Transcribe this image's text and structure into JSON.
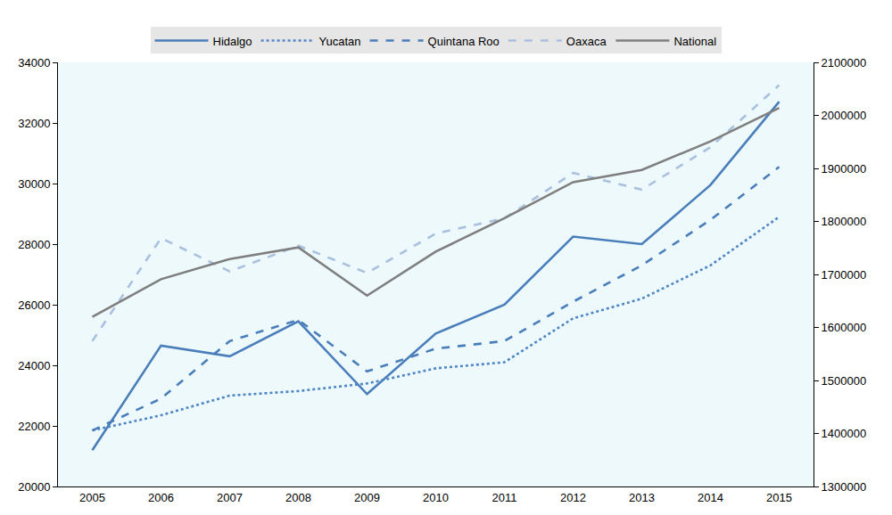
{
  "chart_data": {
    "type": "line",
    "x": [
      2005,
      2006,
      2007,
      2008,
      2009,
      2010,
      2011,
      2012,
      2013,
      2014,
      2015
    ],
    "xlim": [
      2004.5,
      2015.5
    ],
    "xticks": [
      2005,
      2006,
      2007,
      2008,
      2009,
      2010,
      2011,
      2012,
      2013,
      2014,
      2015
    ],
    "ylim": [
      20000,
      34000
    ],
    "yticks": [
      20000,
      22000,
      24000,
      26000,
      28000,
      30000,
      32000,
      34000
    ],
    "y2lim": [
      1300000,
      2100000
    ],
    "y2ticks": [
      1300000,
      1400000,
      1500000,
      1600000,
      1700000,
      1800000,
      1900000,
      2000000,
      2100000
    ],
    "grid": false,
    "legend": "top",
    "series": [
      {
        "name": "Hidalgo",
        "color": "#4a7ebb",
        "line_style": "solid",
        "values": [
          21200,
          24650,
          24300,
          25450,
          23050,
          25050,
          26000,
          28250,
          28000,
          29950,
          32700
        ]
      },
      {
        "name": "Yucatan",
        "color": "#4f86c6",
        "line_style": "dotted",
        "values": [
          21850,
          22350,
          23000,
          23150,
          23400,
          23900,
          24100,
          25550,
          26200,
          27300,
          28900
        ]
      },
      {
        "name": "Quintana Roo",
        "color": "#4a7ebb",
        "line_style": "dashed",
        "values": [
          21850,
          22900,
          24800,
          25500,
          23800,
          24550,
          24800,
          26100,
          27300,
          28800,
          30550
        ]
      },
      {
        "name": "Oaxaca",
        "color": "#a9c0de",
        "line_style": "dashed",
        "values": [
          24800,
          28200,
          27100,
          27950,
          27050,
          28350,
          28850,
          30350,
          29800,
          31200,
          33250
        ]
      },
      {
        "name": "National",
        "color": "#7f7f7f",
        "line_style": "solid",
        "axis": "y2",
        "values": [
          1620000,
          1691000,
          1729000,
          1751000,
          1660000,
          1743000,
          1806000,
          1874000,
          1897000,
          1951000,
          2014000
        ]
      }
    ]
  }
}
